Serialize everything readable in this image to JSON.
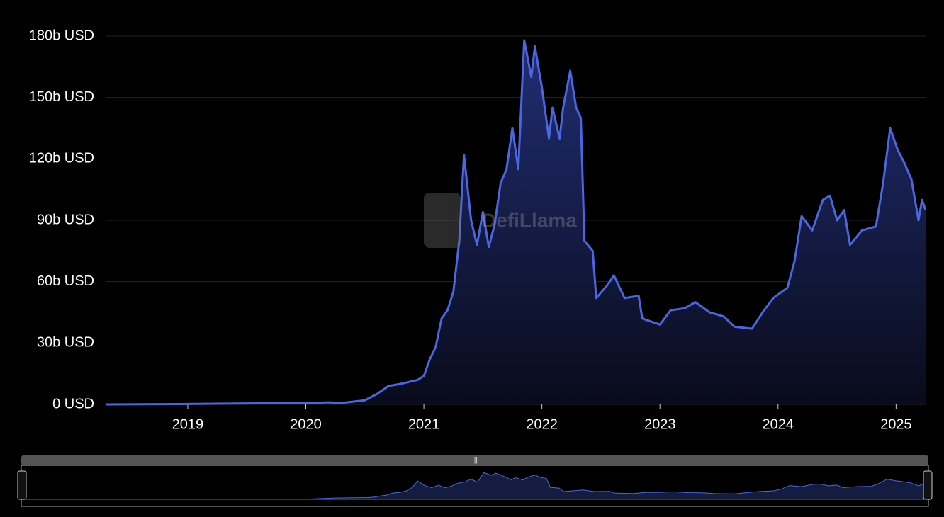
{
  "chart_data": {
    "type": "area",
    "watermark": "DefiLlama",
    "color": "#4a67e0",
    "x": [
      2018.31,
      2019.0,
      2019.5,
      2020.0,
      2020.2,
      2020.3,
      2020.5,
      2020.6,
      2020.7,
      2020.8,
      2020.95,
      2021.0,
      2021.05,
      2021.1,
      2021.15,
      2021.2,
      2021.25,
      2021.3,
      2021.34,
      2021.4,
      2021.45,
      2021.5,
      2021.55,
      2021.6,
      2021.65,
      2021.7,
      2021.75,
      2021.8,
      2021.85,
      2021.91,
      2021.94,
      2022.0,
      2022.06,
      2022.09,
      2022.15,
      2022.18,
      2022.24,
      2022.29,
      2022.33,
      2022.36,
      2022.43,
      2022.46,
      2022.55,
      2022.61,
      2022.7,
      2022.82,
      2022.85,
      2023.0,
      2023.09,
      2023.21,
      2023.3,
      2023.42,
      2023.54,
      2023.63,
      2023.78,
      2023.87,
      2023.96,
      2024.08,
      2024.14,
      2024.2,
      2024.29,
      2024.38,
      2024.44,
      2024.5,
      2024.56,
      2024.61,
      2024.71,
      2024.83,
      2024.89,
      2024.95,
      2025.01,
      2025.07,
      2025.13,
      2025.19,
      2025.22,
      2025.25
    ],
    "values": [
      0,
      0.2,
      0.5,
      0.7,
      1.0,
      0.7,
      2,
      5,
      9,
      10,
      12,
      14,
      22,
      28,
      42,
      46,
      55,
      80,
      122,
      90,
      78,
      94,
      77,
      88,
      108,
      115,
      135,
      115,
      178,
      160,
      175,
      155,
      130,
      145,
      130,
      145,
      163,
      145,
      140,
      80,
      75,
      52,
      58,
      63,
      52,
      53,
      42,
      39,
      46,
      47,
      50,
      45,
      43,
      38,
      37,
      45,
      52,
      57,
      70,
      92,
      85,
      100,
      102,
      90,
      95,
      78,
      85,
      87,
      108,
      135,
      125,
      118,
      110,
      90,
      100,
      95
    ],
    "xlim": [
      2018.31,
      2025.25
    ],
    "xticks": [
      2019,
      2020,
      2021,
      2022,
      2023,
      2024,
      2025
    ],
    "ylim": [
      0,
      180
    ],
    "yticks": [
      {
        "value": 0,
        "label": "0 USD"
      },
      {
        "value": 30,
        "label": "30b USD"
      },
      {
        "value": 60,
        "label": "60b USD"
      },
      {
        "value": 90,
        "label": "90b USD"
      },
      {
        "value": 120,
        "label": "120b USD"
      },
      {
        "value": 150,
        "label": "150b USD"
      },
      {
        "value": 180,
        "label": "180b USD"
      }
    ],
    "grid": true
  }
}
